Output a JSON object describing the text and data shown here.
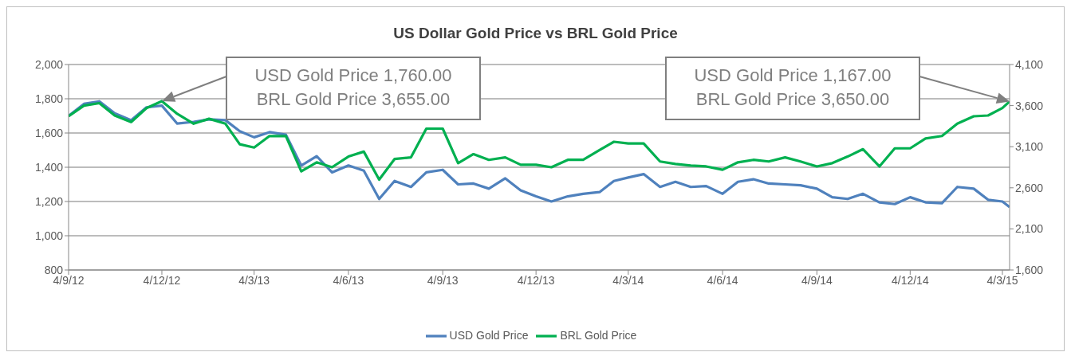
{
  "chart_data": {
    "type": "line",
    "title": "US Dollar Gold Price vs BRL Gold Price",
    "x": [
      "2012-09-04",
      "2012-09-19",
      "2012-10-04",
      "2012-10-19",
      "2012-11-04",
      "2012-11-19",
      "2012-12-04",
      "2012-12-19",
      "2013-01-04",
      "2013-01-19",
      "2013-02-04",
      "2013-02-18",
      "2013-03-04",
      "2013-03-19",
      "2013-04-04",
      "2013-04-19",
      "2013-05-04",
      "2013-05-19",
      "2013-06-04",
      "2013-06-19",
      "2013-07-04",
      "2013-07-19",
      "2013-08-04",
      "2013-08-19",
      "2013-09-04",
      "2013-09-19",
      "2013-10-04",
      "2013-10-19",
      "2013-11-04",
      "2013-11-19",
      "2013-12-04",
      "2013-12-19",
      "2014-01-04",
      "2014-01-19",
      "2014-02-04",
      "2014-02-18",
      "2014-03-04",
      "2014-03-19",
      "2014-04-04",
      "2014-04-19",
      "2014-05-04",
      "2014-05-19",
      "2014-06-04",
      "2014-06-19",
      "2014-07-04",
      "2014-07-19",
      "2014-08-04",
      "2014-08-19",
      "2014-09-04",
      "2014-09-19",
      "2014-10-04",
      "2014-10-19",
      "2014-11-04",
      "2014-11-19",
      "2014-12-04",
      "2014-12-19",
      "2015-01-04",
      "2015-01-19",
      "2015-02-04",
      "2015-02-18",
      "2015-03-04",
      "2015-03-11"
    ],
    "series": [
      {
        "name": "USD Gold Price",
        "color": "#4f81bd",
        "values": [
          1700,
          1770,
          1785,
          1715,
          1675,
          1750,
          1760,
          1655,
          1665,
          1680,
          1675,
          1610,
          1575,
          1605,
          1590,
          1410,
          1465,
          1370,
          1410,
          1380,
          1215,
          1320,
          1285,
          1370,
          1385,
          1300,
          1305,
          1275,
          1335,
          1265,
          1230,
          1200,
          1230,
          1245,
          1255,
          1320,
          1340,
          1360,
          1285,
          1315,
          1285,
          1290,
          1245,
          1315,
          1330,
          1305,
          1300,
          1295,
          1275,
          1225,
          1215,
          1245,
          1195,
          1185,
          1225,
          1195,
          1190,
          1285,
          1275,
          1210,
          1200,
          1167
        ]
      },
      {
        "name": "BRL Gold Price",
        "color": "#00b050",
        "axis": "y2",
        "values": [
          3470,
          3600,
          3630,
          3480,
          3400,
          3570,
          3655,
          3500,
          3380,
          3440,
          3380,
          3130,
          3090,
          3230,
          3230,
          2800,
          2910,
          2850,
          2980,
          3040,
          2700,
          2950,
          2970,
          3320,
          3320,
          2900,
          3010,
          2940,
          2970,
          2880,
          2880,
          2850,
          2940,
          2940,
          3060,
          3160,
          3140,
          3140,
          2920,
          2890,
          2870,
          2860,
          2820,
          2910,
          2940,
          2920,
          2970,
          2920,
          2860,
          2900,
          2980,
          3070,
          2860,
          3080,
          3080,
          3200,
          3230,
          3380,
          3470,
          3480,
          3570,
          3650
        ]
      }
    ],
    "xlim": [
      "2012-09-04",
      "2015-03-11"
    ],
    "xticks": [
      {
        "value": "2012-09-04",
        "label": "4/9/12"
      },
      {
        "value": "2012-12-04",
        "label": "4/12/12"
      },
      {
        "value": "2013-03-04",
        "label": "4/3/13"
      },
      {
        "value": "2013-06-04",
        "label": "4/6/13"
      },
      {
        "value": "2013-09-04",
        "label": "4/9/13"
      },
      {
        "value": "2013-12-04",
        "label": "4/12/13"
      },
      {
        "value": "2014-03-04",
        "label": "4/3/14"
      },
      {
        "value": "2014-06-04",
        "label": "4/6/14"
      },
      {
        "value": "2014-09-04",
        "label": "4/9/14"
      },
      {
        "value": "2014-12-04",
        "label": "4/12/14"
      },
      {
        "value": "2015-03-04",
        "label": "4/3/15"
      }
    ],
    "ylim": [
      800,
      2000
    ],
    "yticks": [
      {
        "value": 800,
        "label": "800"
      },
      {
        "value": 1000,
        "label": "1,000"
      },
      {
        "value": 1200,
        "label": "1,200"
      },
      {
        "value": 1400,
        "label": "1,400"
      },
      {
        "value": 1600,
        "label": "1,600"
      },
      {
        "value": 1800,
        "label": "1,800"
      },
      {
        "value": 2000,
        "label": "2,000"
      }
    ],
    "y2lim": [
      1600,
      4100
    ],
    "y2ticks": [
      {
        "value": 1600,
        "label": "1,600"
      },
      {
        "value": 2100,
        "label": "2,100"
      },
      {
        "value": 2600,
        "label": "2,600"
      },
      {
        "value": 3100,
        "label": "3,100"
      },
      {
        "value": 3600,
        "label": "3,600"
      },
      {
        "value": 4100,
        "label": "4,100"
      }
    ],
    "annotations": [
      "USD Gold Price 1,760.00\nBRL Gold Price 3,655.00",
      "USD Gold Price 1,167.00\nBRL Gold Price 3,650.00"
    ],
    "grid": "y",
    "legend": "bottom"
  }
}
